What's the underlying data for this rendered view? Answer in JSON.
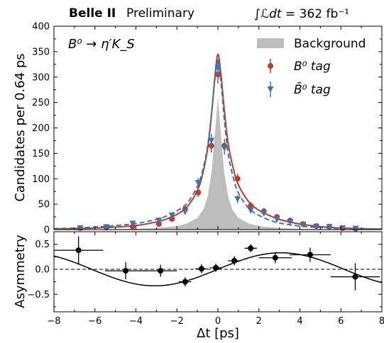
{
  "header": {
    "experiment": "Belle II",
    "status": "Preliminary",
    "luminosity_symbol": "∫ℒdt",
    "luminosity_value": "= 362 fb⁻¹"
  },
  "chart_data": [
    {
      "type": "line",
      "panel": "top",
      "annotation": "B⁰ → η′K_S",
      "xlabel": "",
      "ylabel": "Candidates per 0.64 ps",
      "xlim": [
        -8,
        8
      ],
      "ylim": [
        0,
        400
      ],
      "x_ticks": [
        -8,
        -6,
        -4,
        -2,
        0,
        2,
        4,
        6,
        8
      ],
      "y_ticks": [
        0,
        50,
        100,
        150,
        200,
        250,
        300,
        350,
        400
      ],
      "legend": {
        "placement": "top-right",
        "entries": [
          {
            "label": "Background",
            "color": "#bdbdbd",
            "kind": "fill"
          },
          {
            "label": "B⁰ tag",
            "color": "#c0392b",
            "kind": "point"
          },
          {
            "label": "B̄⁰ tag",
            "color": "#3a74b5",
            "kind": "point"
          }
        ]
      },
      "series": [
        {
          "name": "Background",
          "kind": "area",
          "color": "#bdbdbd",
          "x": [
            -8,
            -6,
            -4,
            -3,
            -2,
            -1.5,
            -1,
            -0.7,
            -0.5,
            -0.3,
            -0.15,
            0,
            0.15,
            0.3,
            0.5,
            0.7,
            1,
            1.5,
            2,
            3,
            4,
            6,
            8
          ],
          "y": [
            0,
            0.5,
            1.5,
            3,
            7,
            12,
            23,
            40,
            65,
            115,
            185,
            262,
            185,
            115,
            65,
            40,
            23,
            12,
            7,
            3,
            1.5,
            0.5,
            0
          ]
        },
        {
          "name": "B⁰ tag",
          "kind": "points",
          "color": "#c0392b",
          "x": [
            -6.72,
            -5.44,
            -4.16,
            -2.88,
            -2.24,
            -1.6,
            -0.96,
            -0.32,
            0,
            0.32,
            0.96,
            1.6,
            2.24,
            2.88,
            3.52,
            4.16,
            4.8,
            5.44,
            6.08,
            6.72
          ],
          "y": [
            3,
            4,
            6,
            11,
            21,
            40,
            73,
            165,
            305,
            165,
            100,
            47,
            36,
            25,
            18,
            11,
            7,
            6,
            3,
            2
          ],
          "yerr": [
            2,
            2,
            2.5,
            3.5,
            4.5,
            6.5,
            8.5,
            13,
            17.5,
            13,
            10,
            7,
            6,
            5,
            4,
            3.5,
            2.6,
            2.5,
            2,
            1.5
          ]
        },
        {
          "name": "B̄⁰ tag",
          "kind": "points",
          "color": "#3a74b5",
          "x": [
            -6.72,
            -5.44,
            -4.16,
            -2.88,
            -2.24,
            -1.6,
            -0.96,
            -0.32,
            0,
            0.32,
            0.96,
            1.6,
            2.24,
            2.88,
            3.52,
            4.16,
            4.8,
            5.44,
            6.08,
            6.72
          ],
          "y": [
            3,
            5,
            12,
            18,
            28,
            35,
            92,
            175,
            318,
            160,
            60,
            38,
            32,
            20,
            15,
            10,
            6,
            5,
            3,
            2
          ],
          "yerr": [
            2,
            2.3,
            3.5,
            4.2,
            5.3,
            6,
            9.6,
            13,
            17.8,
            12.6,
            7.7,
            6.2,
            5.7,
            4.5,
            3.9,
            3.2,
            2.4,
            2.2,
            2,
            1.5
          ]
        },
        {
          "name": "B⁰ tag",
          "kind": "fit",
          "color": "#c0392b",
          "dash": "solid",
          "x": [
            -8,
            -7,
            -6,
            -5,
            -4,
            -3,
            -2.5,
            -2,
            -1.5,
            -1,
            -0.75,
            -0.5,
            -0.3,
            -0.15,
            0,
            0.15,
            0.3,
            0.5,
            0.75,
            1,
            1.5,
            2,
            2.5,
            3,
            4,
            5,
            6,
            7,
            8
          ],
          "y": [
            1,
            2,
            3,
            5,
            8,
            15,
            21,
            30,
            45,
            77,
            108,
            160,
            230,
            300,
            345,
            305,
            240,
            170,
            120,
            88,
            55,
            38,
            28,
            20,
            11,
            6,
            3,
            2,
            1
          ]
        },
        {
          "name": "B̄⁰ tag",
          "kind": "fit",
          "color": "#3a74b5",
          "dash": "dashed",
          "x": [
            -8,
            -7,
            -6,
            -5,
            -4,
            -3,
            -2.5,
            -2,
            -1.5,
            -1,
            -0.75,
            -0.5,
            -0.3,
            -0.15,
            0,
            0.15,
            0.3,
            0.5,
            0.75,
            1,
            1.5,
            2,
            2.5,
            3,
            4,
            5,
            6,
            7,
            8
          ],
          "y": [
            2,
            3,
            5,
            8,
            12,
            20,
            27,
            37,
            52,
            85,
            115,
            165,
            232,
            295,
            335,
            290,
            222,
            150,
            102,
            72,
            42,
            28,
            19,
            13,
            7,
            4,
            2,
            1,
            1
          ]
        }
      ]
    },
    {
      "type": "scatter",
      "panel": "bottom",
      "xlabel": "Δt [ps]",
      "ylabel": "Asymmetry",
      "xlim": [
        -8,
        8
      ],
      "ylim": [
        -0.85,
        0.75
      ],
      "x_ticks": [
        -8,
        -6,
        -4,
        -2,
        0,
        2,
        4,
        6,
        8
      ],
      "y_ticks": [
        -0.5,
        0.0,
        0.5
      ],
      "y_tick_labels": [
        "−0.5",
        "0.0",
        "0.5"
      ],
      "x_tick_labels": [
        "−8",
        "−6",
        "−4",
        "−2",
        "0",
        "2",
        "4",
        "6",
        "8"
      ],
      "reference_line": 0,
      "series": [
        {
          "name": "",
          "kind": "points",
          "color": "#000000",
          "x": [
            -6.8,
            -4.5,
            -2.8,
            -1.6,
            -0.8,
            -0.1,
            0.8,
            1.6,
            2.8,
            4.5,
            6.7
          ],
          "y": [
            0.38,
            -0.03,
            -0.03,
            -0.25,
            0.01,
            0.03,
            0.17,
            0.42,
            0.23,
            0.29,
            -0.15
          ],
          "xerr": [
            1.2,
            1.0,
            0.8,
            0.3,
            0.3,
            0.3,
            0.3,
            0.3,
            0.8,
            1.0,
            1.2
          ],
          "yerr": [
            0.28,
            0.17,
            0.12,
            0.09,
            0.09,
            0.08,
            0.09,
            0.08,
            0.11,
            0.14,
            0.27
          ]
        },
        {
          "name": "",
          "kind": "fit",
          "color": "#000000",
          "model": {
            "amplitude": 0.33,
            "frequency": 0.51,
            "function": "sin"
          }
        }
      ]
    }
  ]
}
